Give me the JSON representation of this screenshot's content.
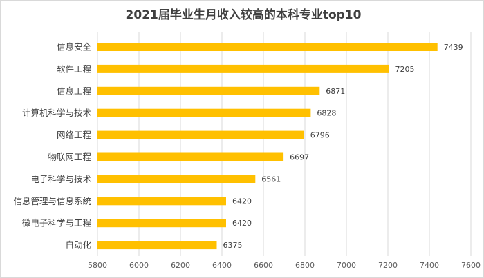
{
  "chart_data": {
    "type": "bar",
    "orientation": "horizontal",
    "title": "2021届毕业生月收入较高的本科专业top10",
    "categories": [
      "信息安全",
      "软件工程",
      "信息工程",
      "计算机科学与技术",
      "网络工程",
      "物联网工程",
      "电子科学与技术",
      "信息管理与信息系统",
      "微电子科学与工程",
      "自动化"
    ],
    "values": [
      7439,
      7205,
      6871,
      6828,
      6796,
      6697,
      6561,
      6420,
      6420,
      6375
    ],
    "xlim": [
      5800,
      7600
    ],
    "xticks": [
      5800,
      6000,
      6200,
      6400,
      6600,
      6800,
      7000,
      7200,
      7400,
      7600
    ],
    "xlabel": "",
    "ylabel": "",
    "grid": "vertical",
    "data_labels": true,
    "bar_color": "#FFC000"
  }
}
